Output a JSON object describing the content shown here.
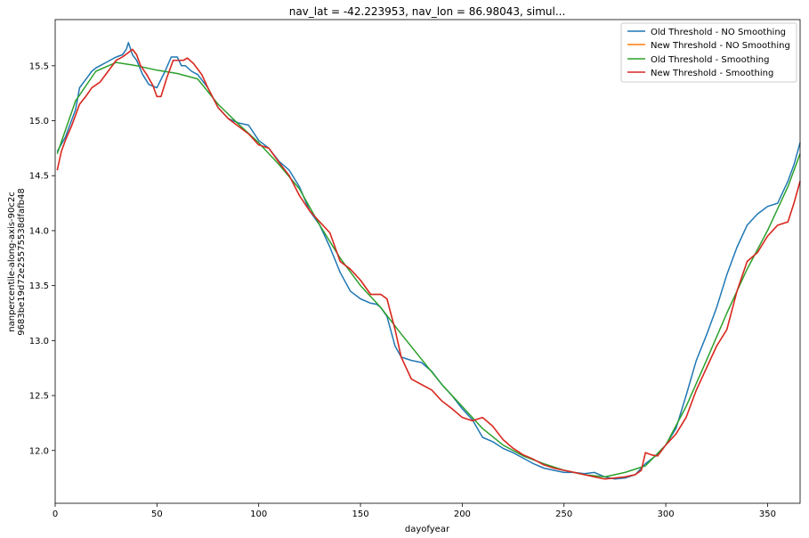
{
  "chart_data": {
    "type": "line",
    "title": "nav_lat = -42.223953, nav_lon = 86.98043, simul...",
    "xlabel": "dayofyear",
    "ylabel_lines": [
      "nanpercentile-along-axis-90c2c",
      "9683be19d72e25575538dfafb48"
    ],
    "xlim": [
      0,
      366
    ],
    "ylim": [
      11.52,
      15.92
    ],
    "xticks": [
      0,
      50,
      100,
      150,
      200,
      250,
      300,
      350
    ],
    "yticks": [
      12.0,
      12.5,
      13.0,
      13.5,
      14.0,
      14.5,
      15.0,
      15.5
    ],
    "legend_position": "top-right",
    "series": [
      {
        "name": "Old Threshold - NO Smoothing",
        "color": "#1f77b4",
        "x": [
          1,
          5,
          8,
          10,
          12,
          14,
          16,
          18,
          20,
          22,
          25,
          28,
          30,
          33,
          35,
          36,
          38,
          40,
          43,
          46,
          50,
          54,
          57,
          60,
          62,
          64,
          67,
          70,
          75,
          80,
          85,
          90,
          95,
          100,
          105,
          110,
          115,
          120,
          125,
          130,
          135,
          140,
          145,
          150,
          155,
          158,
          160,
          163,
          167,
          170,
          175,
          180,
          185,
          190,
          195,
          200,
          205,
          210,
          215,
          220,
          225,
          230,
          235,
          240,
          245,
          250,
          255,
          260,
          265,
          270,
          275,
          280,
          285,
          290,
          295,
          300,
          305,
          310,
          315,
          320,
          325,
          330,
          335,
          340,
          345,
          350,
          355,
          360,
          363,
          366
        ],
        "y": [
          14.72,
          14.85,
          15.0,
          15.1,
          15.3,
          15.35,
          15.4,
          15.45,
          15.48,
          15.5,
          15.53,
          15.56,
          15.58,
          15.6,
          15.65,
          15.71,
          15.6,
          15.55,
          15.42,
          15.33,
          15.3,
          15.45,
          15.58,
          15.58,
          15.5,
          15.5,
          15.45,
          15.42,
          15.3,
          15.12,
          15.02,
          14.98,
          14.96,
          14.82,
          14.75,
          14.63,
          14.55,
          14.4,
          14.18,
          14.05,
          13.85,
          13.62,
          13.45,
          13.38,
          13.34,
          13.33,
          13.3,
          13.22,
          12.95,
          12.85,
          12.82,
          12.8,
          12.72,
          12.6,
          12.5,
          12.38,
          12.28,
          12.12,
          12.08,
          12.02,
          11.98,
          11.93,
          11.88,
          11.84,
          11.82,
          11.8,
          11.8,
          11.79,
          11.8,
          11.76,
          11.74,
          11.75,
          11.78,
          11.88,
          11.95,
          12.05,
          12.2,
          12.5,
          12.82,
          13.05,
          13.3,
          13.6,
          13.85,
          14.05,
          14.15,
          14.22,
          14.25,
          14.45,
          14.6,
          14.8
        ]
      },
      {
        "name": "New Threshold - NO Smoothing",
        "color": "#ff7f0e",
        "x": [
          1,
          3,
          5,
          8,
          10,
          12,
          15,
          18,
          22,
          26,
          30,
          33,
          36,
          38,
          40,
          42,
          45,
          48,
          50,
          52,
          55,
          58,
          60,
          63,
          65,
          68,
          72,
          75,
          80,
          85,
          90,
          95,
          100,
          105,
          110,
          115,
          120,
          125,
          130,
          135,
          140,
          145,
          150,
          155,
          160,
          163,
          167,
          170,
          175,
          180,
          185,
          190,
          195,
          200,
          205,
          210,
          215,
          220,
          225,
          230,
          235,
          240,
          245,
          250,
          255,
          260,
          265,
          270,
          275,
          280,
          285,
          288,
          290,
          293,
          296,
          300,
          305,
          310,
          315,
          320,
          325,
          330,
          335,
          340,
          345,
          350,
          355,
          360,
          363,
          366
        ],
        "y": [
          14.55,
          14.72,
          14.82,
          14.95,
          15.05,
          15.15,
          15.22,
          15.3,
          15.35,
          15.45,
          15.55,
          15.58,
          15.62,
          15.65,
          15.6,
          15.5,
          15.42,
          15.32,
          15.22,
          15.22,
          15.4,
          15.55,
          15.55,
          15.55,
          15.57,
          15.52,
          15.42,
          15.3,
          15.12,
          15.02,
          14.95,
          14.88,
          14.78,
          14.75,
          14.62,
          14.5,
          14.32,
          14.18,
          14.08,
          13.98,
          13.72,
          13.65,
          13.55,
          13.42,
          13.42,
          13.38,
          13.1,
          12.85,
          12.65,
          12.6,
          12.55,
          12.45,
          12.38,
          12.3,
          12.27,
          12.3,
          12.22,
          12.1,
          12.02,
          11.96,
          11.92,
          11.87,
          11.84,
          11.82,
          11.8,
          11.78,
          11.76,
          11.74,
          11.75,
          11.76,
          11.78,
          11.82,
          11.98,
          11.96,
          11.95,
          12.05,
          12.15,
          12.3,
          12.55,
          12.75,
          12.95,
          13.1,
          13.45,
          13.72,
          13.8,
          13.95,
          14.05,
          14.08,
          14.25,
          14.45
        ]
      },
      {
        "name": "Old Threshold - Smoothing",
        "color": "#2ca02c",
        "x": [
          1,
          10,
          20,
          30,
          40,
          50,
          60,
          70,
          80,
          90,
          100,
          110,
          120,
          130,
          140,
          150,
          160,
          170,
          180,
          190,
          200,
          210,
          220,
          230,
          240,
          250,
          260,
          270,
          280,
          290,
          300,
          310,
          320,
          330,
          340,
          350,
          360,
          366
        ],
        "y": [
          14.7,
          15.18,
          15.45,
          15.53,
          15.5,
          15.46,
          15.43,
          15.38,
          15.15,
          14.97,
          14.8,
          14.6,
          14.38,
          14.05,
          13.75,
          13.5,
          13.3,
          13.06,
          12.83,
          12.6,
          12.4,
          12.2,
          12.05,
          11.95,
          11.88,
          11.82,
          11.78,
          11.76,
          11.8,
          11.86,
          12.05,
          12.4,
          12.82,
          13.25,
          13.65,
          14.0,
          14.4,
          14.7
        ]
      },
      {
        "name": "New Threshold - Smoothing",
        "color": "#d62728",
        "x": [
          1,
          3,
          5,
          8,
          10,
          12,
          15,
          18,
          22,
          26,
          30,
          33,
          36,
          38,
          40,
          42,
          45,
          48,
          50,
          52,
          55,
          58,
          60,
          63,
          65,
          68,
          72,
          75,
          80,
          85,
          90,
          95,
          100,
          105,
          110,
          115,
          120,
          125,
          130,
          135,
          140,
          145,
          150,
          155,
          160,
          163,
          167,
          170,
          175,
          180,
          185,
          190,
          195,
          200,
          205,
          210,
          215,
          220,
          225,
          230,
          235,
          240,
          245,
          250,
          255,
          260,
          265,
          270,
          275,
          280,
          285,
          288,
          290,
          293,
          296,
          300,
          305,
          310,
          315,
          320,
          325,
          330,
          335,
          340,
          345,
          350,
          355,
          360,
          363,
          366
        ],
        "y": [
          14.55,
          14.72,
          14.82,
          14.95,
          15.05,
          15.15,
          15.22,
          15.3,
          15.35,
          15.45,
          15.55,
          15.58,
          15.62,
          15.65,
          15.6,
          15.5,
          15.42,
          15.32,
          15.22,
          15.22,
          15.4,
          15.55,
          15.55,
          15.55,
          15.57,
          15.52,
          15.42,
          15.3,
          15.12,
          15.02,
          14.95,
          14.88,
          14.78,
          14.75,
          14.62,
          14.5,
          14.32,
          14.18,
          14.08,
          13.98,
          13.72,
          13.65,
          13.55,
          13.42,
          13.42,
          13.38,
          13.1,
          12.85,
          12.65,
          12.6,
          12.55,
          12.45,
          12.38,
          12.3,
          12.27,
          12.3,
          12.22,
          12.1,
          12.02,
          11.96,
          11.92,
          11.87,
          11.84,
          11.82,
          11.8,
          11.78,
          11.76,
          11.74,
          11.75,
          11.76,
          11.78,
          11.82,
          11.98,
          11.96,
          11.95,
          12.05,
          12.15,
          12.3,
          12.55,
          12.75,
          12.95,
          13.1,
          13.45,
          13.72,
          13.8,
          13.95,
          14.05,
          14.08,
          14.25,
          14.45
        ]
      }
    ]
  }
}
